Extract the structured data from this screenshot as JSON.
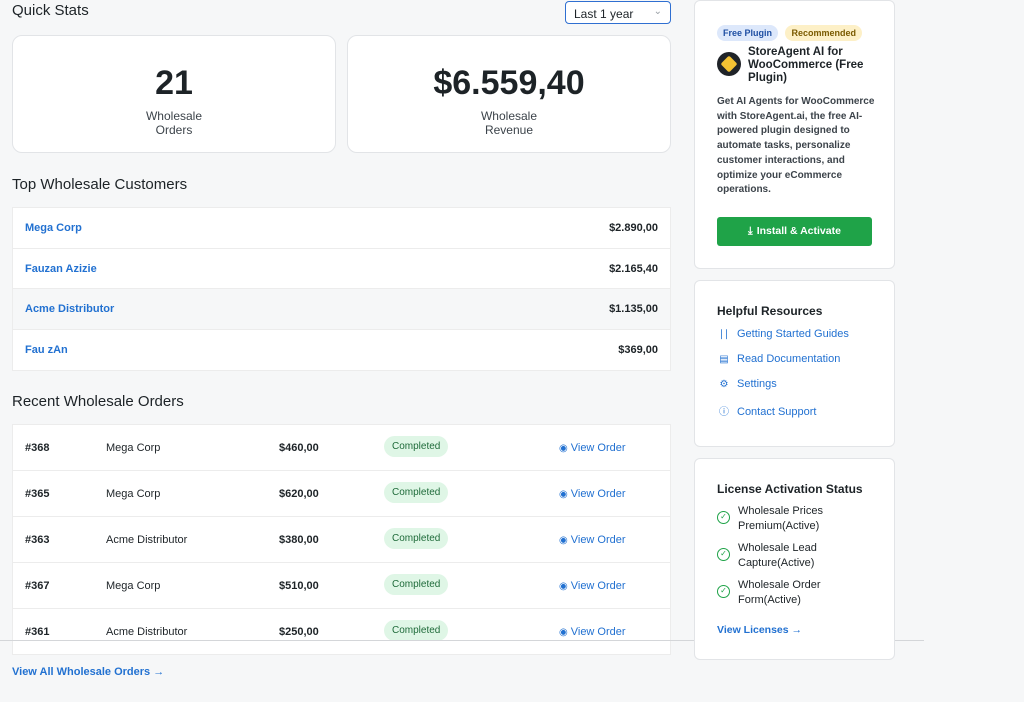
{
  "quick_stats": {
    "title": "Quick Stats",
    "range_select": "Last 1 year",
    "orders_value": "21",
    "orders_label_line1": "Wholesale",
    "orders_label_line2": "Orders",
    "revenue_value": "$6.559,40",
    "revenue_label_line1": "Wholesale",
    "revenue_label_line2": "Revenue"
  },
  "top_customers": {
    "title": "Top Wholesale Customers",
    "rows": [
      {
        "name": "Mega Corp",
        "amount": "$2.890,00"
      },
      {
        "name": "Fauzan Azizie",
        "amount": "$2.165,40"
      },
      {
        "name": "Acme Distributor",
        "amount": "$1.135,00"
      },
      {
        "name": "Fau zAn",
        "amount": "$369,00"
      }
    ]
  },
  "recent_orders": {
    "title": "Recent Wholesale Orders",
    "view_label": "View Order",
    "rows": [
      {
        "id": "#368",
        "customer": "Mega Corp",
        "amount": "$460,00",
        "status": "Completed"
      },
      {
        "id": "#365",
        "customer": "Mega Corp",
        "amount": "$620,00",
        "status": "Completed"
      },
      {
        "id": "#363",
        "customer": "Acme Distributor",
        "amount": "$380,00",
        "status": "Completed"
      },
      {
        "id": "#367",
        "customer": "Mega Corp",
        "amount": "$510,00",
        "status": "Completed"
      },
      {
        "id": "#361",
        "customer": "Acme Distributor",
        "amount": "$250,00",
        "status": "Completed"
      }
    ],
    "view_all": "View All Wholesale Orders →"
  },
  "plugin_promo": {
    "badge_free": "Free Plugin",
    "badge_recommended": "Recommended",
    "title": "StoreAgent AI for WooCommerce (Free Plugin)",
    "description": "Get AI Agents for WooCommerce with StoreAgent.ai, the free AI-powered plugin designed to automate tasks, personalize customer interactions, and optimize your eCommerce operations.",
    "button": "Install & Activate"
  },
  "resources": {
    "title": "Helpful Resources",
    "items": [
      {
        "label": "Getting Started Guides",
        "icon": "chart-icon"
      },
      {
        "label": "Read Documentation",
        "icon": "document-icon"
      },
      {
        "label": "Settings",
        "icon": "gear-icon"
      },
      {
        "label": "Contact Support",
        "icon": "help-icon"
      }
    ]
  },
  "license": {
    "title": "License Activation Status",
    "items": [
      {
        "line1": "Wholesale Prices",
        "line2": "Premium(Active)"
      },
      {
        "line1": "Wholesale Lead",
        "line2": "Capture(Active)"
      },
      {
        "line1": "Wholesale Order",
        "line2": "Form(Active)"
      }
    ],
    "view_link": "View Licenses →"
  },
  "colors": {
    "accent": "#2271d1",
    "success": "#1fa348",
    "badge_blue": "#dde8fb",
    "badge_yellow": "#fdf0c7"
  }
}
